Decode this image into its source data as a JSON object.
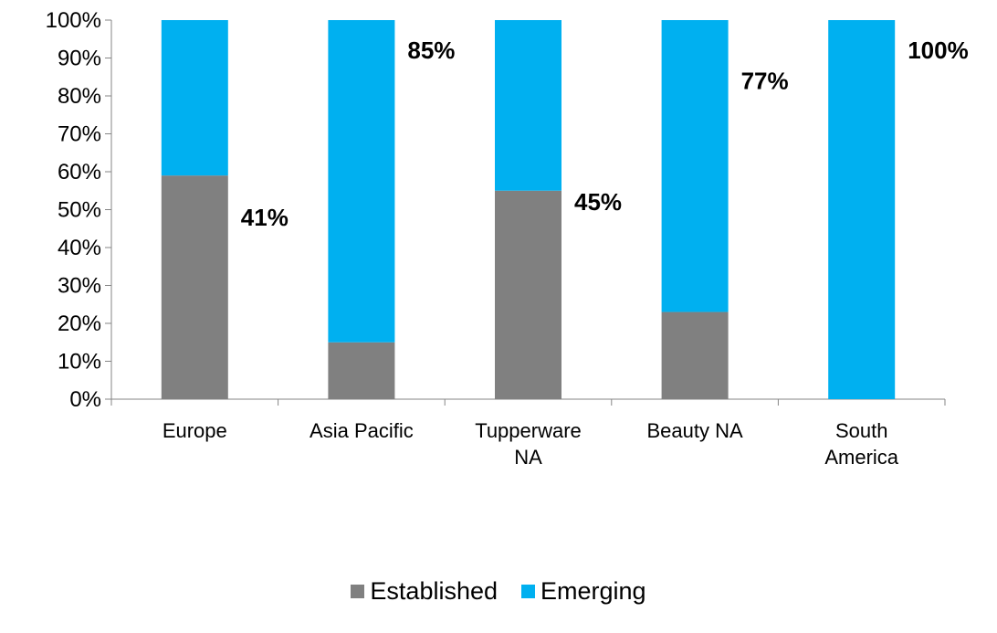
{
  "chart_data": {
    "type": "bar",
    "stacked": true,
    "percent": true,
    "categories": [
      "Europe",
      "Asia Pacific",
      "Tupperware NA",
      "Beauty NA",
      "South America"
    ],
    "category_lines": [
      [
        "Europe"
      ],
      [
        "Asia Pacific"
      ],
      [
        "Tupperware",
        "NA"
      ],
      [
        "Beauty NA"
      ],
      [
        "South",
        "America"
      ]
    ],
    "series": [
      {
        "name": "Established",
        "color": "#808080",
        "values": [
          59,
          15,
          55,
          23,
          0
        ]
      },
      {
        "name": "Emerging",
        "color": "#00b0f0",
        "values": [
          41,
          85,
          45,
          77,
          100
        ]
      }
    ],
    "data_labels": [
      "41%",
      "85%",
      "45%",
      "77%",
      "100%"
    ],
    "ylim": [
      0,
      100
    ],
    "yticks": [
      "0%",
      "10%",
      "20%",
      "30%",
      "40%",
      "50%",
      "60%",
      "70%",
      "80%",
      "90%",
      "100%"
    ],
    "grid": false,
    "legend": {
      "position": "bottom"
    }
  }
}
